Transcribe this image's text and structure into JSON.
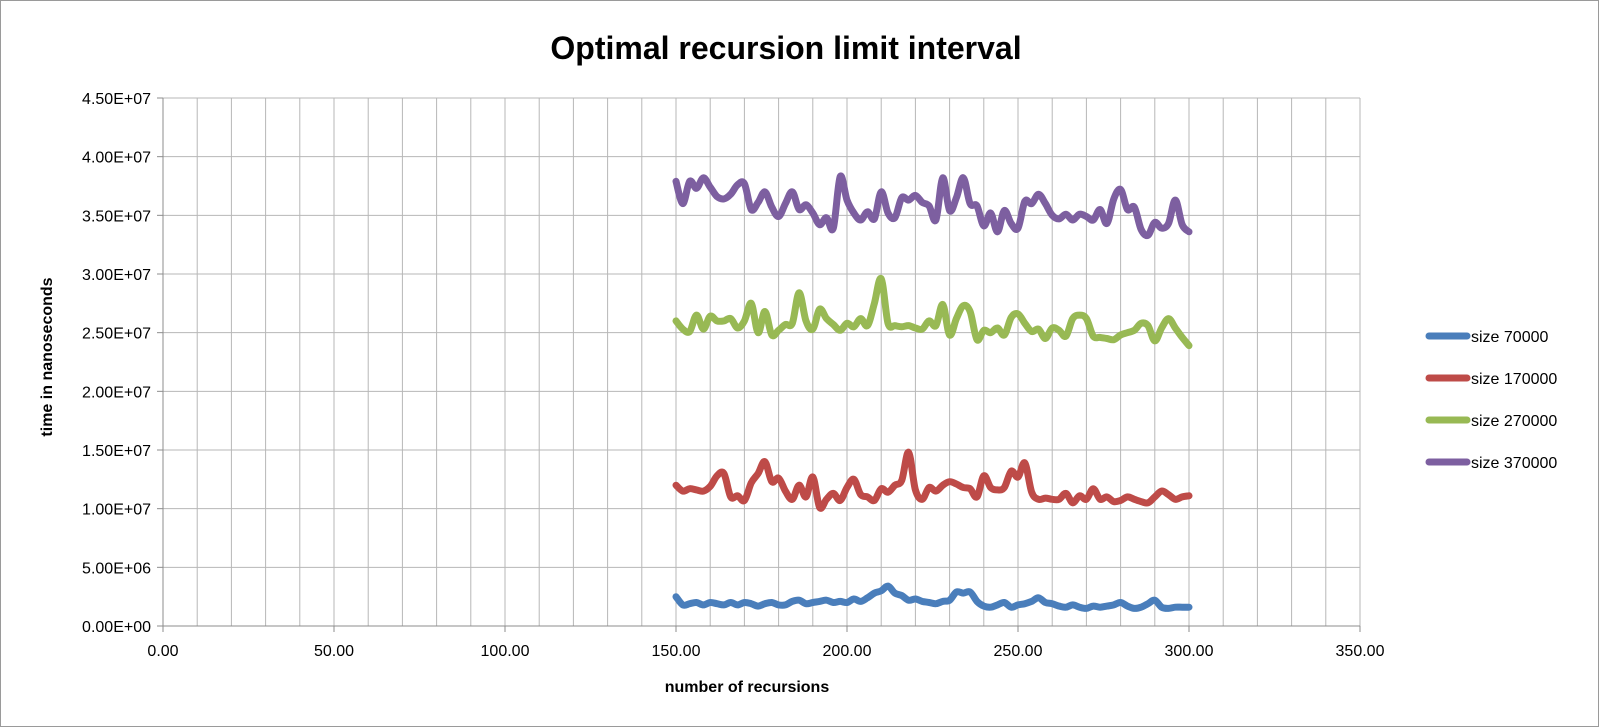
{
  "chart_data": {
    "type": "line",
    "title": "Optimal recursion limit interval",
    "xlabel": "number of recursions",
    "ylabel": "time in  nanoseconds",
    "xlim": [
      0,
      350
    ],
    "ylim": [
      0,
      45000000
    ],
    "x_ticks": [
      0,
      50,
      100,
      150,
      200,
      250,
      300,
      350
    ],
    "x_tick_labels": [
      "0.00",
      "50.00",
      "100.00",
      "150.00",
      "200.00",
      "250.00",
      "300.00",
      "350.00"
    ],
    "x_minor_step": 10,
    "y_ticks": [
      0,
      5000000,
      10000000,
      15000000,
      20000000,
      25000000,
      30000000,
      35000000,
      40000000,
      45000000
    ],
    "y_tick_labels": [
      "0.00E+00",
      "5.00E+06",
      "1.00E+07",
      "1.50E+07",
      "2.00E+07",
      "2.50E+07",
      "3.00E+07",
      "3.50E+07",
      "4.00E+07",
      "4.50E+07"
    ],
    "grid": true,
    "legend_position": "right",
    "x": [
      150,
      152,
      154,
      156,
      158,
      160,
      162,
      164,
      166,
      168,
      170,
      172,
      174,
      176,
      178,
      180,
      182,
      184,
      186,
      188,
      190,
      192,
      194,
      196,
      198,
      200,
      202,
      204,
      206,
      208,
      210,
      212,
      214,
      216,
      218,
      220,
      222,
      224,
      226,
      228,
      230,
      232,
      234,
      236,
      238,
      240,
      242,
      244,
      246,
      248,
      250,
      252,
      254,
      256,
      258,
      260,
      262,
      264,
      266,
      268,
      270,
      272,
      274,
      276,
      278,
      280,
      282,
      284,
      286,
      288,
      290,
      292,
      294,
      296,
      298,
      300
    ],
    "series": [
      {
        "name": "size 70000",
        "color": "#4a7ebb",
        "values": [
          2500000,
          1800000,
          1900000,
          2000000,
          1800000,
          2000000,
          1900000,
          1800000,
          2000000,
          1800000,
          2000000,
          1900000,
          1700000,
          1900000,
          2000000,
          1800000,
          1800000,
          2100000,
          2200000,
          1900000,
          2000000,
          2100000,
          2200000,
          2000000,
          2100000,
          2000000,
          2300000,
          2100000,
          2400000,
          2800000,
          3000000,
          3400000,
          2800000,
          2600000,
          2200000,
          2300000,
          2100000,
          2000000,
          1900000,
          2100000,
          2200000,
          2900000,
          2800000,
          2900000,
          2100000,
          1700000,
          1600000,
          1800000,
          2000000,
          1600000,
          1800000,
          1900000,
          2100000,
          2400000,
          2000000,
          1900000,
          1700000,
          1600000,
          1800000,
          1600000,
          1500000,
          1700000,
          1600000,
          1700000,
          1800000,
          2000000,
          1700000,
          1500000,
          1600000,
          1900000,
          2200000,
          1600000,
          1500000,
          1600000,
          1600000,
          1600000
        ]
      },
      {
        "name": "size 170000",
        "color": "#be4b48",
        "values": [
          12000000,
          11500000,
          11700000,
          11600000,
          11500000,
          11900000,
          12800000,
          13000000,
          11000000,
          11100000,
          10700000,
          12200000,
          13000000,
          14000000,
          12300000,
          12600000,
          11500000,
          10800000,
          12000000,
          11000000,
          12700000,
          10100000,
          10800000,
          11300000,
          10700000,
          11800000,
          12500000,
          11200000,
          11000000,
          10700000,
          11700000,
          11400000,
          12000000,
          12400000,
          14800000,
          11600000,
          10800000,
          11800000,
          11500000,
          12000000,
          12300000,
          12100000,
          11800000,
          11700000,
          11000000,
          12800000,
          11800000,
          11600000,
          11800000,
          13200000,
          12700000,
          13900000,
          11400000,
          10800000,
          10900000,
          10800000,
          10800000,
          11300000,
          10500000,
          11100000,
          10800000,
          11700000,
          10800000,
          11000000,
          10600000,
          10700000,
          11000000,
          10800000,
          10600000,
          10500000,
          11000000,
          11500000,
          11200000,
          10800000,
          11000000,
          11100000
        ]
      },
      {
        "name": "size 270000",
        "color": "#98b954",
        "values": [
          26000000,
          25300000,
          25100000,
          26500000,
          25300000,
          26400000,
          26000000,
          26000000,
          26200000,
          25400000,
          26000000,
          27500000,
          25000000,
          26800000,
          24800000,
          25200000,
          25700000,
          25800000,
          28400000,
          26000000,
          25300000,
          27000000,
          26200000,
          25700000,
          25200000,
          25800000,
          25500000,
          26200000,
          25600000,
          27500000,
          29600000,
          25800000,
          25600000,
          25500000,
          25600000,
          25400000,
          25300000,
          26000000,
          25600000,
          27400000,
          24800000,
          26200000,
          27300000,
          26800000,
          24400000,
          25200000,
          25000000,
          25400000,
          24800000,
          26300000,
          26600000,
          25800000,
          25100000,
          25300000,
          24500000,
          25400000,
          25200000,
          24700000,
          26200000,
          26500000,
          26200000,
          24700000,
          24600000,
          24500000,
          24400000,
          24800000,
          25000000,
          25200000,
          25800000,
          25600000,
          24300000,
          25400000,
          26200000,
          25400000,
          24600000,
          23900000
        ]
      },
      {
        "name": "size 370000",
        "color": "#7d5fa0",
        "values": [
          37900000,
          36000000,
          37900000,
          37300000,
          38200000,
          37400000,
          36600000,
          36400000,
          36800000,
          37600000,
          37700000,
          35500000,
          36100000,
          37000000,
          35700000,
          34900000,
          36000000,
          37000000,
          35500000,
          35900000,
          35200000,
          34200000,
          34800000,
          33900000,
          38300000,
          36300000,
          35200000,
          34600000,
          35300000,
          34700000,
          37000000,
          35200000,
          34800000,
          36500000,
          36300000,
          36700000,
          36100000,
          35800000,
          34600000,
          38200000,
          35400000,
          36500000,
          38200000,
          36000000,
          35800000,
          34100000,
          35200000,
          33600000,
          35400000,
          34300000,
          33900000,
          36200000,
          36000000,
          36800000,
          36000000,
          35000000,
          34700000,
          35100000,
          34600000,
          35100000,
          34900000,
          34600000,
          35500000,
          34300000,
          36400000,
          37200000,
          35500000,
          35700000,
          33800000,
          33300000,
          34400000,
          33900000,
          34300000,
          36300000,
          34200000,
          33600000
        ]
      }
    ]
  }
}
